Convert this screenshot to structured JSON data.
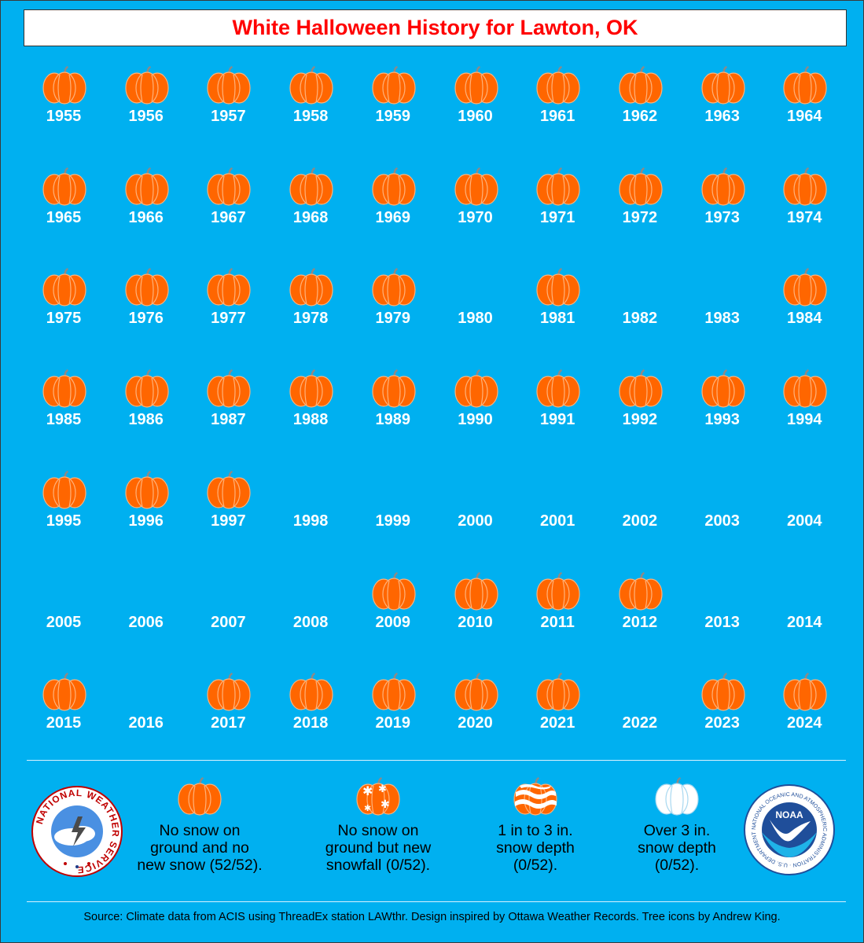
{
  "title": "White Halloween History for Lawton, OK",
  "colors": {
    "background": "#00b0f0",
    "title": "#ff0000",
    "pumpkin": "#ff6600",
    "text": "#ffffff"
  },
  "years": [
    {
      "year": "1955",
      "category": "no-snow"
    },
    {
      "year": "1956",
      "category": "no-snow"
    },
    {
      "year": "1957",
      "category": "no-snow"
    },
    {
      "year": "1958",
      "category": "no-snow"
    },
    {
      "year": "1959",
      "category": "no-snow"
    },
    {
      "year": "1960",
      "category": "no-snow"
    },
    {
      "year": "1961",
      "category": "no-snow"
    },
    {
      "year": "1962",
      "category": "no-snow"
    },
    {
      "year": "1963",
      "category": "no-snow"
    },
    {
      "year": "1964",
      "category": "no-snow"
    },
    {
      "year": "1965",
      "category": "no-snow"
    },
    {
      "year": "1966",
      "category": "no-snow"
    },
    {
      "year": "1967",
      "category": "no-snow"
    },
    {
      "year": "1968",
      "category": "no-snow"
    },
    {
      "year": "1969",
      "category": "no-snow"
    },
    {
      "year": "1970",
      "category": "no-snow"
    },
    {
      "year": "1971",
      "category": "no-snow"
    },
    {
      "year": "1972",
      "category": "no-snow"
    },
    {
      "year": "1973",
      "category": "no-snow"
    },
    {
      "year": "1974",
      "category": "no-snow"
    },
    {
      "year": "1975",
      "category": "no-snow"
    },
    {
      "year": "1976",
      "category": "no-snow"
    },
    {
      "year": "1977",
      "category": "no-snow"
    },
    {
      "year": "1978",
      "category": "no-snow"
    },
    {
      "year": "1979",
      "category": "no-snow"
    },
    {
      "year": "1980",
      "category": "none"
    },
    {
      "year": "1981",
      "category": "no-snow"
    },
    {
      "year": "1982",
      "category": "none"
    },
    {
      "year": "1983",
      "category": "none"
    },
    {
      "year": "1984",
      "category": "no-snow"
    },
    {
      "year": "1985",
      "category": "no-snow"
    },
    {
      "year": "1986",
      "category": "no-snow"
    },
    {
      "year": "1987",
      "category": "no-snow"
    },
    {
      "year": "1988",
      "category": "no-snow"
    },
    {
      "year": "1989",
      "category": "no-snow"
    },
    {
      "year": "1990",
      "category": "no-snow"
    },
    {
      "year": "1991",
      "category": "no-snow"
    },
    {
      "year": "1992",
      "category": "no-snow"
    },
    {
      "year": "1993",
      "category": "no-snow"
    },
    {
      "year": "1994",
      "category": "no-snow"
    },
    {
      "year": "1995",
      "category": "no-snow"
    },
    {
      "year": "1996",
      "category": "no-snow"
    },
    {
      "year": "1997",
      "category": "no-snow"
    },
    {
      "year": "1998",
      "category": "none"
    },
    {
      "year": "1999",
      "category": "none"
    },
    {
      "year": "2000",
      "category": "none"
    },
    {
      "year": "2001",
      "category": "none"
    },
    {
      "year": "2002",
      "category": "none"
    },
    {
      "year": "2003",
      "category": "none"
    },
    {
      "year": "2004",
      "category": "none"
    },
    {
      "year": "2005",
      "category": "none"
    },
    {
      "year": "2006",
      "category": "none"
    },
    {
      "year": "2007",
      "category": "none"
    },
    {
      "year": "2008",
      "category": "none"
    },
    {
      "year": "2009",
      "category": "no-snow"
    },
    {
      "year": "2010",
      "category": "no-snow"
    },
    {
      "year": "2011",
      "category": "no-snow"
    },
    {
      "year": "2012",
      "category": "no-snow"
    },
    {
      "year": "2013",
      "category": "none"
    },
    {
      "year": "2014",
      "category": "none"
    },
    {
      "year": "2015",
      "category": "no-snow"
    },
    {
      "year": "2016",
      "category": "none"
    },
    {
      "year": "2017",
      "category": "no-snow"
    },
    {
      "year": "2018",
      "category": "no-snow"
    },
    {
      "year": "2019",
      "category": "no-snow"
    },
    {
      "year": "2020",
      "category": "no-snow"
    },
    {
      "year": "2021",
      "category": "no-snow"
    },
    {
      "year": "2022",
      "category": "none"
    },
    {
      "year": "2023",
      "category": "no-snow"
    },
    {
      "year": "2024",
      "category": "no-snow"
    }
  ],
  "legend": [
    {
      "icon": "plain-pumpkin-icon",
      "lines": [
        "No snow on",
        "ground and no",
        "new snow (52/52)."
      ]
    },
    {
      "icon": "snowflake-pumpkin-icon",
      "lines": [
        "No snow on",
        "ground but new",
        "snowfall (0/52)."
      ]
    },
    {
      "icon": "striped-snow-pumpkin-icon",
      "lines": [
        "1 in to 3 in.",
        "snow depth",
        "(0/52)."
      ]
    },
    {
      "icon": "white-pumpkin-icon",
      "lines": [
        "Over 3 in.",
        "snow depth",
        "(0/52)."
      ]
    }
  ],
  "logos": {
    "nws_text": "NATIONAL WEATHER SERVICE",
    "noaa_text": "NOAA",
    "noaa_ring_text": "NATIONAL OCEANIC AND ATMOSPHERIC ADMINISTRATION · U.S. DEPARTMENT OF COMMERCE"
  },
  "source": "Source: Climate data from ACIS using ThreadEx station LAWthr. Design inspired by Ottawa Weather Records. Tree icons by Andrew King."
}
